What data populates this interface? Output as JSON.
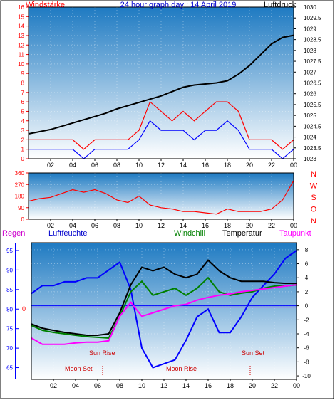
{
  "header": {
    "left_title": "Windstärke",
    "center_title": "24 hour graph day : 14 April 2019",
    "right_title": "Luftdruck"
  },
  "colors": {
    "wind": "#ff0000",
    "gust": "#0000ff",
    "pressure": "#000000",
    "direction": "#ff0000",
    "humidity": "#0000ff",
    "temperature": "#000000",
    "windchill": "#008000",
    "dewpoint": "#ff00ff",
    "axis_left": "#ff0000",
    "axis_blue": "#0000ff",
    "plot_bg_top": "#1e7ac2",
    "plot_bg_bottom": "#ffffff"
  },
  "chart_data": [
    {
      "id": "wind-pressure",
      "type": "line",
      "x_ticks": [
        "02",
        "04",
        "06",
        "08",
        "10",
        "12",
        "14",
        "16",
        "18",
        "20",
        "22",
        "00"
      ],
      "left_axis": {
        "label": "Windstärke",
        "ticks": [
          "0",
          "1",
          "2",
          "3",
          "4",
          "5",
          "6",
          "7",
          "8",
          "9",
          "10",
          "11",
          "12",
          "13",
          "14",
          "15",
          "16"
        ],
        "ylim": [
          0,
          16
        ]
      },
      "right_axis": {
        "label": "Luftdruck",
        "ticks": [
          "1023",
          "1023.5",
          "1024",
          "1024.5",
          "1025",
          "1025.5",
          "1026",
          "1026.5",
          "1027",
          "1027.5",
          "1028",
          "1028.5",
          "1029",
          "1029.5",
          "1030"
        ],
        "ylim": [
          1023,
          1030
        ]
      },
      "series": [
        {
          "key": "pressure",
          "axis": "right",
          "x": [
            0,
            1,
            2,
            3,
            4,
            5,
            6,
            7,
            8,
            9,
            10,
            11,
            12,
            13,
            14,
            15,
            16,
            17,
            18,
            19,
            20,
            21,
            22,
            23,
            24
          ],
          "values": [
            1024.15,
            1024.25,
            1024.35,
            1024.5,
            1024.65,
            1024.8,
            1024.95,
            1025.1,
            1025.3,
            1025.45,
            1025.6,
            1025.75,
            1025.9,
            1026.1,
            1026.3,
            1026.4,
            1026.45,
            1026.5,
            1026.6,
            1026.9,
            1027.3,
            1027.8,
            1028.3,
            1028.6,
            1028.7
          ]
        },
        {
          "key": "wind",
          "axis": "left",
          "x": [
            0,
            1,
            2,
            3,
            4,
            5,
            6,
            7,
            8,
            9,
            10,
            11,
            12,
            13,
            14,
            15,
            16,
            17,
            18,
            19,
            20,
            21,
            22,
            23,
            24
          ],
          "values": [
            2,
            2,
            2,
            2,
            2,
            1,
            2,
            2,
            2,
            2,
            3,
            6,
            5,
            4,
            5,
            4,
            5,
            6,
            6,
            5,
            2,
            2,
            2,
            1,
            2
          ]
        },
        {
          "key": "gust",
          "axis": "left",
          "x": [
            0,
            1,
            2,
            3,
            4,
            5,
            6,
            7,
            8,
            9,
            10,
            11,
            12,
            13,
            14,
            15,
            16,
            17,
            18,
            19,
            20,
            21,
            22,
            23,
            24
          ],
          "values": [
            1,
            1,
            1,
            1,
            1,
            0,
            1,
            1,
            1,
            1,
            2,
            4,
            3,
            3,
            3,
            2,
            3,
            3,
            4,
            3,
            1,
            1,
            1,
            0,
            1
          ]
        }
      ]
    },
    {
      "id": "wind-direction",
      "type": "line",
      "x_ticks": [
        "02",
        "04",
        "06",
        "08",
        "10",
        "12",
        "14",
        "16",
        "18",
        "20",
        "22",
        "00"
      ],
      "left_axis": {
        "ticks": [
          "0",
          "90",
          "180",
          "270",
          "360"
        ],
        "ylim": [
          0,
          360
        ]
      },
      "right_labels": [
        "N",
        "W",
        "S",
        "O",
        "N"
      ],
      "series": [
        {
          "key": "direction",
          "x": [
            0,
            1,
            2,
            3,
            4,
            5,
            6,
            7,
            8,
            9,
            10,
            11,
            12,
            13,
            14,
            15,
            16,
            17,
            18,
            19,
            20,
            21,
            22,
            23,
            24
          ],
          "values": [
            140,
            160,
            170,
            200,
            230,
            210,
            230,
            200,
            150,
            130,
            180,
            110,
            90,
            80,
            60,
            60,
            50,
            40,
            80,
            60,
            60,
            60,
            80,
            150,
            300
          ]
        }
      ]
    },
    {
      "id": "temp-humidity",
      "type": "line",
      "x_ticks": [
        "02",
        "04",
        "06",
        "08",
        "10",
        "12",
        "14",
        "16",
        "18",
        "20",
        "22",
        "00"
      ],
      "top_labels": {
        "regen": "Regen",
        "luftfeuchte": "Luftfeuchte",
        "windchill": "Windchill",
        "temperatur": "Temperatur",
        "taupunkt": "Taupunkt"
      },
      "left_axis": {
        "ticks": [
          "65",
          "70",
          "75",
          "80",
          "85",
          "90",
          "95"
        ],
        "ylim": [
          62,
          97
        ]
      },
      "right_axis": {
        "ticks": [
          "-10",
          "-8",
          "-6",
          "-4",
          "-2",
          "0",
          "2",
          "4",
          "6",
          "8"
        ],
        "ylim": [
          -10.5,
          9
        ]
      },
      "reference_label": "0",
      "annotations": [
        "Sun Rise",
        "Moon Set",
        "Moon Rise",
        "Sun Set"
      ],
      "series": [
        {
          "key": "humidity",
          "axis": "left",
          "x": [
            0,
            1,
            2,
            3,
            4,
            5,
            6,
            7,
            8,
            9,
            10,
            11,
            12,
            13,
            14,
            15,
            16,
            17,
            18,
            19,
            20,
            21,
            22,
            23,
            24
          ],
          "values": [
            84,
            86,
            86,
            87,
            87,
            88,
            88,
            90,
            92,
            85,
            70,
            65,
            66,
            67,
            72,
            78,
            80,
            74,
            74,
            78,
            83,
            86,
            89,
            93,
            95
          ]
        },
        {
          "key": "temperature",
          "axis": "right",
          "x": [
            0,
            1,
            2,
            3,
            4,
            5,
            6,
            7,
            8,
            9,
            10,
            11,
            12,
            13,
            14,
            15,
            16,
            17,
            18,
            19,
            20,
            21,
            22,
            23,
            24
          ],
          "values": [
            -2.6,
            -3.2,
            -3.5,
            -3.8,
            -4.0,
            -4.2,
            -4.2,
            -4.0,
            -1.0,
            3.0,
            5.5,
            5.0,
            5.5,
            4.5,
            4.0,
            4.5,
            6.5,
            5.0,
            4.0,
            3.5,
            3.5,
            3.5,
            3.3,
            3.2,
            3.2
          ]
        },
        {
          "key": "windchill",
          "axis": "right",
          "x": [
            0,
            1,
            2,
            3,
            4,
            5,
            6,
            7,
            8,
            9,
            10,
            11,
            12,
            13,
            14,
            15,
            16,
            17,
            18,
            19,
            20,
            21,
            22,
            23,
            24
          ],
          "values": [
            -2.8,
            -3.5,
            -3.8,
            -4.0,
            -4.2,
            -4.4,
            -4.5,
            -4.6,
            -1.5,
            2.0,
            3.5,
            1.5,
            2.0,
            2.5,
            1.5,
            2.5,
            4.0,
            2.0,
            1.5,
            1.8,
            2.0,
            2.5,
            2.8,
            2.8,
            3.0
          ]
        },
        {
          "key": "dewpoint",
          "axis": "right",
          "x": [
            0,
            1,
            2,
            3,
            4,
            5,
            6,
            7,
            8,
            9,
            10,
            11,
            12,
            13,
            14,
            15,
            16,
            17,
            18,
            19,
            20,
            21,
            22,
            23,
            24
          ],
          "values": [
            -4.6,
            -5.5,
            -5.5,
            -5.5,
            -5.3,
            -5.2,
            -5.2,
            -5.0,
            -1.5,
            0.5,
            -1.5,
            -1.0,
            -0.5,
            0.0,
            0.2,
            0.8,
            1.2,
            1.5,
            1.7,
            2.0,
            2.2,
            2.4,
            2.6,
            2.8,
            3.0
          ]
        }
      ]
    }
  ]
}
